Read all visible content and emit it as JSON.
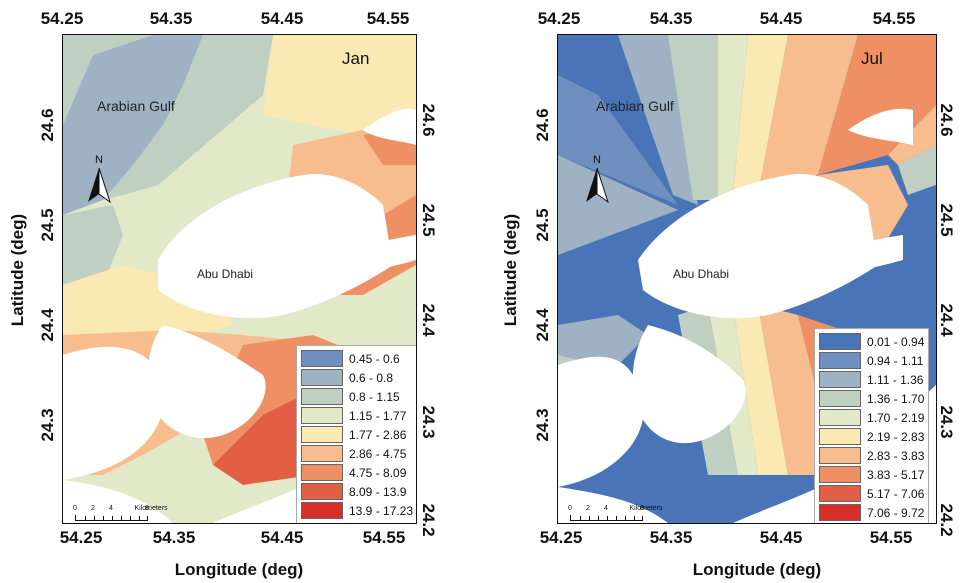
{
  "axes": {
    "xlabel": "Longitude (deg)",
    "ylabel": "Latitude (deg)",
    "xticks": [
      "54.25",
      "54.35",
      "54.45",
      "54.55"
    ],
    "yticks": [
      "24.6",
      "24.5",
      "24.4",
      "24.3",
      "24.2"
    ]
  },
  "colors": {
    "land": "#ffffff",
    "c1": "#4a74b8",
    "c2": "#6f8fbf",
    "c3": "#9fb2c4",
    "c4": "#bfcfc2",
    "c5": "#e2e9c8",
    "c6": "#fbe9b4",
    "c7": "#f7bd8e",
    "c8": "#ee9064",
    "c9": "#e25f45",
    "c10": "#d62f2a"
  },
  "panels": [
    {
      "month": "Jan",
      "places": {
        "gulf": "Arabian Gulf",
        "city": "Abu Dhabi"
      },
      "north_label": "N",
      "scale": {
        "ticks": [
          "0",
          "2",
          "4",
          "8"
        ],
        "unit": "Kilometers"
      },
      "legend": [
        {
          "label": "0.45 - 0.6",
          "color": "#6f8fbf"
        },
        {
          "label": "0.6 - 0.8",
          "color": "#9fb2c4"
        },
        {
          "label": "0.8 - 1.15",
          "color": "#bfcfc2"
        },
        {
          "label": "1.15 - 1.77",
          "color": "#e2e9c8"
        },
        {
          "label": "1.77 - 2.86",
          "color": "#fbe9b4"
        },
        {
          "label": "2.86 - 4.75",
          "color": "#f7bd8e"
        },
        {
          "label": "4.75 - 8.09",
          "color": "#ee9064"
        },
        {
          "label": "8.09 - 13.9",
          "color": "#e25f45"
        },
        {
          "label": "13.9 - 17.23",
          "color": "#d62f2a"
        }
      ]
    },
    {
      "month": "Jul",
      "places": {
        "gulf": "Arabian Gulf",
        "city": "Abu Dhabi"
      },
      "north_label": "N",
      "scale": {
        "ticks": [
          "0",
          "2",
          "4",
          "8"
        ],
        "unit": "Kilometers"
      },
      "legend": [
        {
          "label": "0.01 - 0.94",
          "color": "#4a74b8"
        },
        {
          "label": "0.94 - 1.11",
          "color": "#6f8fbf"
        },
        {
          "label": "1.11 - 1.36",
          "color": "#9fb2c4"
        },
        {
          "label": "1.36 - 1.70",
          "color": "#bfcfc2"
        },
        {
          "label": "1.70 - 2.19",
          "color": "#e2e9c8"
        },
        {
          "label": "2.19 - 2.83",
          "color": "#fbe9b4"
        },
        {
          "label": "2.83 - 3.83",
          "color": "#f7bd8e"
        },
        {
          "label": "3.83 - 5.17",
          "color": "#ee9064"
        },
        {
          "label": "5.17 - 7.06",
          "color": "#e25f45"
        },
        {
          "label": "7.06 - 9.72",
          "color": "#d62f2a"
        }
      ]
    }
  ]
}
